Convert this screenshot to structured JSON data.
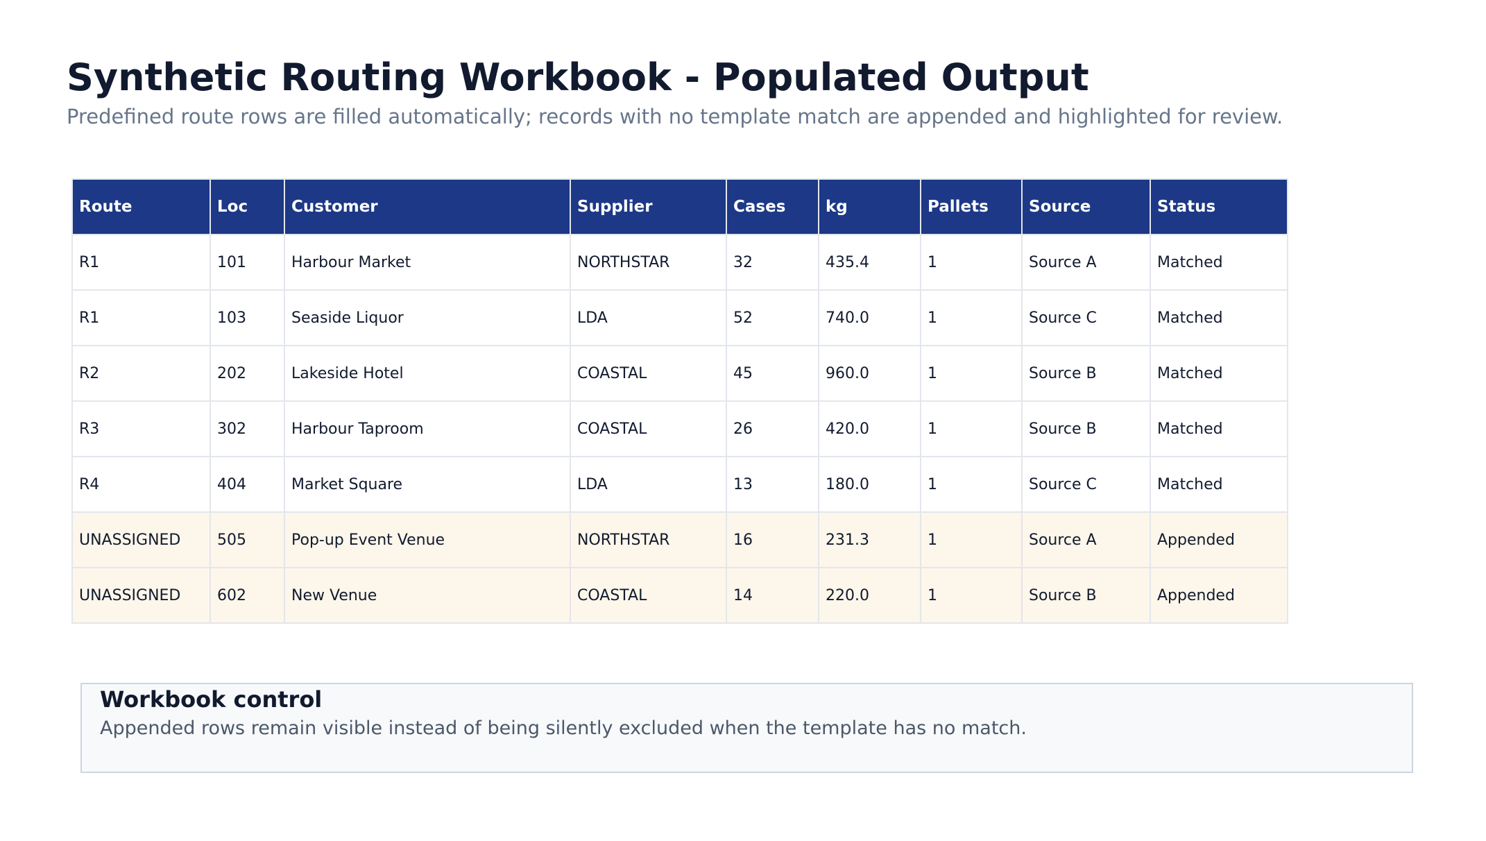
{
  "header": {
    "title": "Synthetic Routing Workbook - Populated Output",
    "subtitle": "Predefined route rows are filled automatically; records with no template match are appended and highlighted for review."
  },
  "table": {
    "columns": [
      "Route",
      "Loc",
      "Customer",
      "Supplier",
      "Cases",
      "kg",
      "Pallets",
      "Source",
      "Status"
    ],
    "rows": [
      [
        "R1",
        "101",
        "Harbour Market",
        "NORTHSTAR",
        "32",
        "435.4",
        "1",
        "Source A",
        "Matched"
      ],
      [
        "R1",
        "103",
        "Seaside Liquor",
        "LDA",
        "52",
        "740.0",
        "1",
        "Source C",
        "Matched"
      ],
      [
        "R2",
        "202",
        "Lakeside Hotel",
        "COASTAL",
        "45",
        "960.0",
        "1",
        "Source B",
        "Matched"
      ],
      [
        "R3",
        "302",
        "Harbour Taproom",
        "COASTAL",
        "26",
        "420.0",
        "1",
        "Source B",
        "Matched"
      ],
      [
        "R4",
        "404",
        "Market Square",
        "LDA",
        "13",
        "180.0",
        "1",
        "Source C",
        "Matched"
      ],
      [
        "UNASSIGNED",
        "505",
        "Pop-up Event Venue",
        "NORTHSTAR",
        "16",
        "231.3",
        "1",
        "Source A",
        "Appended"
      ],
      [
        "UNASSIGNED",
        "602",
        "New Venue",
        "COASTAL",
        "14",
        "220.0",
        "1",
        "Source B",
        "Appended"
      ]
    ]
  },
  "control": {
    "title": "Workbook control",
    "text": "Appended rows remain visible instead of being silently excluded when the template has no match."
  },
  "colors": {
    "header_bg": "#1c3886",
    "appended_row_bg": "#fdf6ea",
    "title": "#111a2e"
  }
}
